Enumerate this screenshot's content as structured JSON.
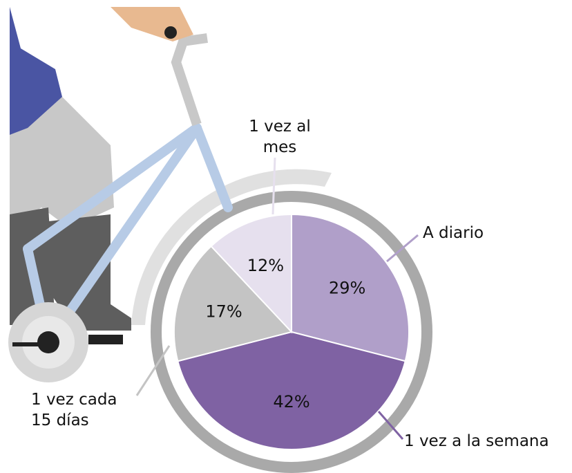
{
  "chart_data": {
    "type": "pie",
    "categories": [
      "A diario",
      "1 vez a la semana",
      "1 vez cada 15 días",
      "1 vez al mes"
    ],
    "values": [
      29,
      42,
      17,
      12
    ],
    "value_labels": [
      "29%",
      "42%",
      "17%",
      "12%"
    ],
    "colors": [
      "#b09fc9",
      "#7f62a3",
      "#c4c4c4",
      "#e6e0ee"
    ]
  }
}
